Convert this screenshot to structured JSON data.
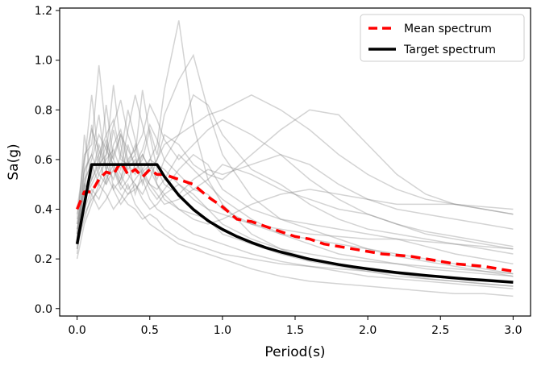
{
  "chart_data": {
    "type": "line",
    "title": "",
    "xlabel": "Period(s)",
    "ylabel": "Sa(g)",
    "xlim": [
      -0.12,
      3.12
    ],
    "ylim": [
      -0.03,
      1.21
    ],
    "xticks": [
      0.0,
      0.5,
      1.0,
      1.5,
      2.0,
      2.5,
      3.0
    ],
    "xtick_labels": [
      "0.0",
      "0.5",
      "1.0",
      "1.5",
      "2.0",
      "2.5",
      "3.0"
    ],
    "yticks": [
      0.0,
      0.2,
      0.4,
      0.6,
      0.8,
      1.0,
      1.2
    ],
    "ytick_labels": [
      "0.0",
      "0.2",
      "0.4",
      "0.6",
      "0.8",
      "1.0",
      "1.2"
    ],
    "grid": false,
    "legend_position": "top-right",
    "series": [
      {
        "name": "Mean spectrum",
        "style": "dashed",
        "color": "#ff0000",
        "x": [
          0.0,
          0.05,
          0.1,
          0.15,
          0.2,
          0.25,
          0.3,
          0.35,
          0.4,
          0.45,
          0.5,
          0.55,
          0.6,
          0.7,
          0.8,
          0.9,
          1.0,
          1.1,
          1.2,
          1.3,
          1.4,
          1.5,
          1.6,
          1.7,
          1.8,
          1.9,
          2.0,
          2.1,
          2.2,
          2.3,
          2.4,
          2.5,
          2.6,
          2.7,
          2.8,
          2.9,
          3.0
        ],
        "y": [
          0.4,
          0.47,
          0.47,
          0.52,
          0.55,
          0.54,
          0.59,
          0.54,
          0.56,
          0.53,
          0.56,
          0.54,
          0.54,
          0.52,
          0.5,
          0.45,
          0.41,
          0.36,
          0.35,
          0.33,
          0.31,
          0.29,
          0.28,
          0.26,
          0.25,
          0.24,
          0.23,
          0.22,
          0.215,
          0.21,
          0.2,
          0.19,
          0.18,
          0.175,
          0.17,
          0.16,
          0.15
        ]
      },
      {
        "name": "Target spectrum",
        "style": "solid",
        "color": "#000000",
        "x": [
          0.0,
          0.1,
          0.55,
          0.6,
          0.7,
          0.8,
          0.9,
          1.0,
          1.1,
          1.2,
          1.3,
          1.4,
          1.5,
          1.6,
          1.7,
          1.8,
          1.9,
          2.0,
          2.1,
          2.2,
          2.3,
          2.4,
          2.5,
          2.6,
          2.7,
          2.8,
          2.9,
          3.0
        ],
        "y": [
          0.26,
          0.58,
          0.58,
          0.532,
          0.456,
          0.399,
          0.354,
          0.319,
          0.29,
          0.266,
          0.245,
          0.228,
          0.213,
          0.199,
          0.188,
          0.177,
          0.168,
          0.16,
          0.152,
          0.145,
          0.139,
          0.133,
          0.128,
          0.123,
          0.118,
          0.114,
          0.11,
          0.106
        ]
      }
    ],
    "background_curves": {
      "color": "#808080",
      "x": [
        0.0,
        0.05,
        0.1,
        0.15,
        0.2,
        0.25,
        0.3,
        0.35,
        0.4,
        0.45,
        0.5,
        0.55,
        0.6,
        0.7,
        0.8,
        0.9,
        1.0,
        1.2,
        1.4,
        1.6,
        1.8,
        2.0,
        2.2,
        2.4,
        2.6,
        2.8,
        3.0
      ],
      "curves": [
        [
          0.3,
          0.55,
          0.62,
          0.78,
          0.55,
          0.72,
          0.6,
          0.58,
          0.62,
          0.5,
          0.6,
          0.66,
          0.88,
          1.16,
          0.74,
          0.52,
          0.42,
          0.3,
          0.24,
          0.2,
          0.18,
          0.16,
          0.14,
          0.12,
          0.11,
          0.1,
          0.09
        ],
        [
          0.28,
          0.7,
          0.52,
          0.6,
          0.68,
          0.48,
          0.52,
          0.66,
          0.56,
          0.6,
          0.72,
          0.62,
          0.78,
          0.92,
          1.02,
          0.8,
          0.62,
          0.45,
          0.36,
          0.32,
          0.28,
          0.24,
          0.21,
          0.19,
          0.17,
          0.15,
          0.13
        ],
        [
          0.32,
          0.48,
          0.74,
          0.56,
          0.82,
          0.6,
          0.7,
          0.58,
          0.54,
          0.62,
          0.56,
          0.6,
          0.66,
          0.7,
          0.74,
          0.78,
          0.8,
          0.86,
          0.8,
          0.72,
          0.62,
          0.54,
          0.48,
          0.44,
          0.42,
          0.4,
          0.38
        ],
        [
          0.24,
          0.58,
          0.86,
          0.6,
          0.5,
          0.66,
          0.72,
          0.6,
          0.46,
          0.55,
          0.58,
          0.52,
          0.6,
          0.7,
          0.86,
          0.82,
          0.7,
          0.56,
          0.5,
          0.42,
          0.36,
          0.32,
          0.3,
          0.28,
          0.26,
          0.24,
          0.22
        ],
        [
          0.36,
          0.62,
          0.66,
          0.98,
          0.7,
          0.56,
          0.5,
          0.58,
          0.66,
          0.54,
          0.5,
          0.48,
          0.52,
          0.62,
          0.56,
          0.5,
          0.44,
          0.36,
          0.3,
          0.26,
          0.22,
          0.2,
          0.18,
          0.16,
          0.15,
          0.14,
          0.13
        ],
        [
          0.22,
          0.44,
          0.52,
          0.58,
          0.62,
          0.74,
          0.84,
          0.7,
          0.62,
          0.88,
          0.7,
          0.56,
          0.5,
          0.46,
          0.52,
          0.56,
          0.54,
          0.58,
          0.62,
          0.58,
          0.5,
          0.44,
          0.4,
          0.38,
          0.36,
          0.34,
          0.32
        ],
        [
          0.34,
          0.52,
          0.58,
          0.5,
          0.62,
          0.9,
          0.66,
          0.54,
          0.5,
          0.46,
          0.52,
          0.6,
          0.7,
          0.66,
          0.58,
          0.54,
          0.52,
          0.62,
          0.72,
          0.8,
          0.78,
          0.66,
          0.54,
          0.46,
          0.42,
          0.4,
          0.38
        ],
        [
          0.26,
          0.4,
          0.48,
          0.44,
          0.52,
          0.58,
          0.5,
          0.46,
          0.48,
          0.52,
          0.44,
          0.4,
          0.38,
          0.34,
          0.3,
          0.28,
          0.26,
          0.22,
          0.19,
          0.17,
          0.15,
          0.13,
          0.12,
          0.11,
          0.1,
          0.09,
          0.08
        ],
        [
          0.3,
          0.46,
          0.54,
          0.66,
          0.58,
          0.52,
          0.62,
          0.8,
          0.68,
          0.56,
          0.5,
          0.46,
          0.42,
          0.44,
          0.48,
          0.46,
          0.4,
          0.34,
          0.3,
          0.28,
          0.26,
          0.24,
          0.22,
          0.2,
          0.18,
          0.16,
          0.14
        ],
        [
          0.38,
          0.56,
          0.62,
          0.54,
          0.6,
          0.64,
          0.56,
          0.72,
          0.86,
          0.74,
          0.62,
          0.5,
          0.44,
          0.4,
          0.36,
          0.34,
          0.36,
          0.42,
          0.46,
          0.48,
          0.46,
          0.44,
          0.42,
          0.42,
          0.42,
          0.41,
          0.4
        ],
        [
          0.2,
          0.34,
          0.42,
          0.5,
          0.46,
          0.4,
          0.44,
          0.5,
          0.42,
          0.38,
          0.34,
          0.32,
          0.3,
          0.26,
          0.24,
          0.22,
          0.2,
          0.16,
          0.13,
          0.11,
          0.1,
          0.09,
          0.08,
          0.07,
          0.06,
          0.06,
          0.05
        ],
        [
          0.28,
          0.5,
          0.6,
          0.7,
          0.64,
          0.58,
          0.52,
          0.6,
          0.64,
          0.7,
          0.82,
          0.76,
          0.68,
          0.6,
          0.66,
          0.72,
          0.76,
          0.7,
          0.62,
          0.52,
          0.44,
          0.38,
          0.34,
          0.3,
          0.28,
          0.26,
          0.24
        ],
        [
          0.32,
          0.44,
          0.5,
          0.56,
          0.66,
          0.6,
          0.54,
          0.48,
          0.52,
          0.56,
          0.6,
          0.58,
          0.56,
          0.5,
          0.44,
          0.4,
          0.38,
          0.34,
          0.32,
          0.3,
          0.29,
          0.28,
          0.28,
          0.27,
          0.26,
          0.25,
          0.24
        ],
        [
          0.26,
          0.36,
          0.46,
          0.4,
          0.44,
          0.5,
          0.46,
          0.42,
          0.4,
          0.36,
          0.38,
          0.36,
          0.32,
          0.28,
          0.26,
          0.24,
          0.22,
          0.2,
          0.18,
          0.17,
          0.16,
          0.15,
          0.14,
          0.13,
          0.12,
          0.12,
          0.11
        ],
        [
          0.4,
          0.6,
          0.72,
          0.64,
          0.56,
          0.62,
          0.7,
          0.64,
          0.58,
          0.64,
          0.74,
          0.68,
          0.6,
          0.54,
          0.48,
          0.52,
          0.58,
          0.54,
          0.48,
          0.44,
          0.4,
          0.38,
          0.34,
          0.31,
          0.29,
          0.27,
          0.25
        ],
        [
          0.24,
          0.38,
          0.44,
          0.48,
          0.54,
          0.48,
          0.42,
          0.46,
          0.5,
          0.44,
          0.4,
          0.42,
          0.46,
          0.5,
          0.46,
          0.4,
          0.34,
          0.28,
          0.24,
          0.22,
          0.2,
          0.19,
          0.18,
          0.17,
          0.16,
          0.15,
          0.14
        ],
        [
          0.3,
          0.48,
          0.56,
          0.62,
          0.7,
          0.76,
          0.62,
          0.56,
          0.6,
          0.54,
          0.48,
          0.44,
          0.48,
          0.56,
          0.62,
          0.58,
          0.48,
          0.4,
          0.36,
          0.34,
          0.32,
          0.3,
          0.28,
          0.25,
          0.22,
          0.2,
          0.18
        ],
        [
          0.34,
          0.5,
          0.46,
          0.54,
          0.5,
          0.56,
          0.48,
          0.52,
          0.58,
          0.62,
          0.56,
          0.5,
          0.46,
          0.4,
          0.38,
          0.36,
          0.3,
          0.26,
          0.22,
          0.19,
          0.17,
          0.15,
          0.13,
          0.12,
          0.11,
          0.1,
          0.09
        ]
      ]
    }
  }
}
